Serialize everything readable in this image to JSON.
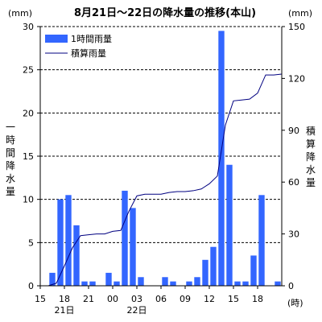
{
  "chart_data": {
    "type": "bar",
    "title": "8月21日～22日の降水量の推移(本山)",
    "y_unit_left": "(mm)",
    "y_unit_right": "(mm)",
    "ylabel_left": "一時間降水量",
    "ylabel_right": "積算降水量",
    "x_unit": "(時)",
    "ylim_left": [
      0,
      30
    ],
    "ylim_right": [
      0,
      150
    ],
    "yticks_left": [
      "0",
      "5",
      "10",
      "15",
      "20",
      "25",
      "30"
    ],
    "yticks_right": [
      "0",
      "30",
      "60",
      "90",
      "120",
      "150"
    ],
    "grid": "horizontal dashed",
    "legend_position": "top-left",
    "x_tick_labels": [
      "15",
      "18",
      "21",
      "00",
      "03",
      "06",
      "09",
      "12",
      "15",
      "18"
    ],
    "x_date_labels": [
      "21日",
      "22日"
    ],
    "series": [
      {
        "name": "1時間雨量",
        "type": "bar",
        "color": "#3366ff",
        "axis": "left",
        "values": [
          0,
          1.5,
          10,
          10.5,
          7,
          0.5,
          0.5,
          0,
          1.5,
          0.5,
          11,
          9,
          1,
          0,
          0,
          1,
          0.5,
          0,
          0.5,
          1,
          3,
          4.5,
          29.5,
          14,
          0.5,
          0.5,
          3.5,
          10.5,
          0,
          0.5
        ]
      },
      {
        "name": "積算雨量",
        "type": "line",
        "color": "#000080",
        "axis": "right",
        "values": [
          0,
          1.5,
          11.5,
          22,
          29,
          29.5,
          30,
          30,
          31.5,
          32,
          43,
          52,
          53,
          53,
          53,
          54,
          54.5,
          54.5,
          55,
          56,
          59,
          63.5,
          93,
          107,
          107.5,
          108,
          111.5,
          122,
          122,
          122.5
        ]
      }
    ]
  }
}
